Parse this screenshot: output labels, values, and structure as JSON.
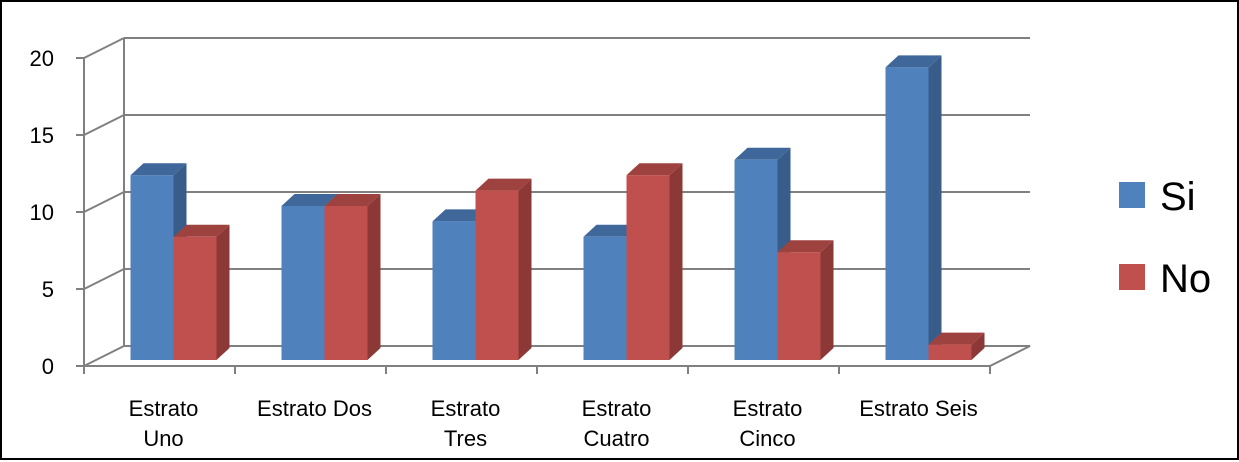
{
  "chart_data": {
    "type": "bar",
    "categories": [
      [
        "Estrato",
        "Uno"
      ],
      [
        "Estrato Dos"
      ],
      [
        "Estrato",
        "Tres"
      ],
      [
        "Estrato",
        "Cuatro"
      ],
      [
        "Estrato",
        "Cinco"
      ],
      [
        "Estrato Seis"
      ]
    ],
    "series": [
      {
        "name": "Si",
        "values": [
          12,
          10,
          9,
          8,
          13,
          19
        ],
        "color": "#4F81BD",
        "side": "#385D8A",
        "top": "#3F679A"
      },
      {
        "name": "No",
        "values": [
          8,
          10,
          11,
          12,
          7,
          1
        ],
        "color": "#C0504D",
        "side": "#8C3836",
        "top": "#9E423F"
      }
    ],
    "yticks": [
      0,
      5,
      10,
      15,
      20
    ],
    "ylim": [
      0,
      20
    ],
    "grid": true,
    "legend_position": "right",
    "style": "3d-clustered-column"
  }
}
